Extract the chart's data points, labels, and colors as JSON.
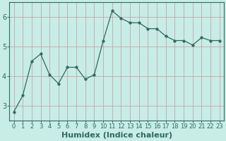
{
  "x": [
    0,
    1,
    2,
    3,
    4,
    5,
    6,
    7,
    8,
    9,
    10,
    11,
    12,
    13,
    14,
    15,
    16,
    17,
    18,
    19,
    20,
    21,
    22,
    23
  ],
  "y": [
    2.8,
    3.35,
    4.5,
    4.75,
    4.05,
    3.75,
    4.3,
    4.3,
    3.9,
    4.05,
    5.2,
    6.2,
    5.95,
    5.8,
    5.8,
    5.6,
    5.6,
    5.35,
    5.2,
    5.2,
    5.05,
    5.3,
    5.2,
    5.2
  ],
  "line_color": "#2d6b5e",
  "marker": "o",
  "marker_size": 2.5,
  "bg_color": "#c8ece6",
  "grid_color": "#c4a0a0",
  "xlabel": "Humidex (Indice chaleur)",
  "xlabel_fontsize": 8,
  "tick_fontsize": 6,
  "yticks": [
    3,
    4,
    5,
    6
  ],
  "ylim": [
    2.5,
    6.5
  ],
  "xlim": [
    -0.5,
    23.5
  ],
  "spine_color": "#2d6b5e",
  "figsize": [
    3.2,
    2.0
  ],
  "dpi": 100
}
